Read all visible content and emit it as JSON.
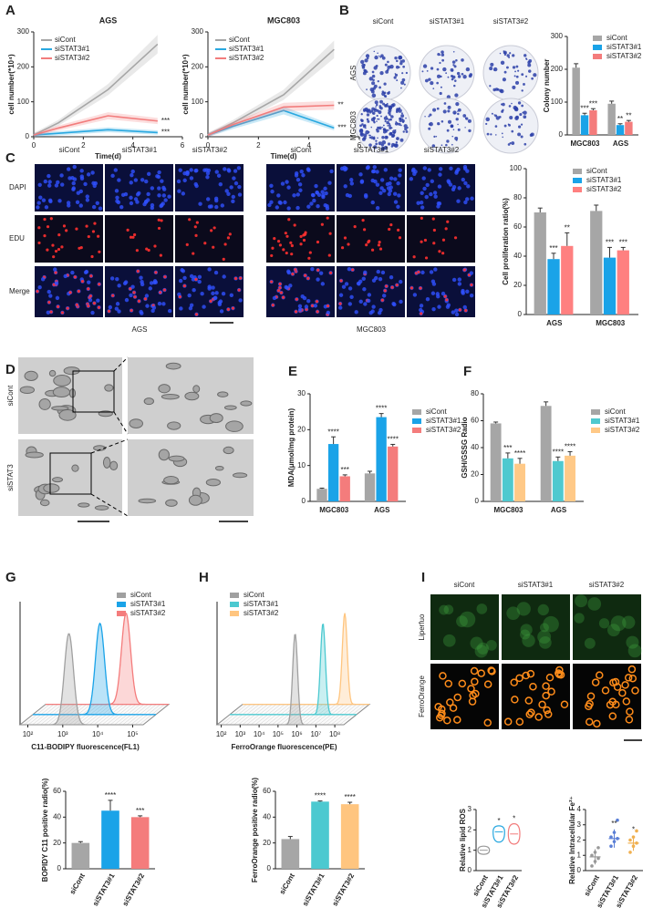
{
  "figure": {
    "panel_labels": [
      "A",
      "B",
      "C",
      "D",
      "E",
      "F",
      "G",
      "H",
      "I"
    ],
    "colony_images": {
      "columns": [
        "siCont",
        "siSTAT3#1",
        "siSTAT3#2"
      ],
      "rows": [
        "AGS",
        "MGC803"
      ]
    },
    "edu_images": {
      "columns": [
        "siCont",
        "siSTAT3#1",
        "siSTAT3#2"
      ],
      "rows": [
        "DAPI",
        "EDU",
        "Merge"
      ],
      "cell_lines": [
        "AGS",
        "MGC803"
      ]
    },
    "em_images": {
      "rows": [
        "siCont",
        "siSTAT3"
      ]
    },
    "ros_images": {
      "columns": [
        "siCont",
        "siSTAT3#1",
        "siSTAT3#2"
      ],
      "rows": [
        "Liperfuo",
        "FerroOrange"
      ]
    }
  },
  "chart_data": [
    {
      "type": "line",
      "title": "AGS",
      "xlabel": "Time(d)",
      "ylabel": "cell number(*10⁴)",
      "x": [
        0,
        1,
        3,
        5
      ],
      "xlim": [
        0,
        6
      ],
      "xticks": [
        0,
        2,
        4,
        6
      ],
      "ylim": [
        0,
        300
      ],
      "yticks": [
        0,
        100,
        200,
        300
      ],
      "series": [
        {
          "name": "siCont",
          "color": "#a6a6a6",
          "values": [
            5,
            40,
            135,
            265
          ]
        },
        {
          "name": "siSTAT3#1",
          "color": "#29a8e0",
          "values": [
            5,
            10,
            20,
            12
          ],
          "annotation": "***"
        },
        {
          "name": "siSTAT3#2",
          "color": "#f27c7c",
          "values": [
            5,
            25,
            60,
            45
          ],
          "annotation": "***"
        }
      ]
    },
    {
      "type": "line",
      "title": "MGC803",
      "xlabel": "Time(d)",
      "ylabel": "cell number(*10⁴)",
      "x": [
        0,
        1,
        3,
        5
      ],
      "xlim": [
        0,
        6
      ],
      "xticks": [
        0,
        2,
        4,
        6
      ],
      "ylim": [
        0,
        300
      ],
      "yticks": [
        0,
        100,
        200,
        300
      ],
      "series": [
        {
          "name": "siCont",
          "color": "#a6a6a6",
          "values": [
            5,
            40,
            120,
            250
          ]
        },
        {
          "name": "siSTAT3#1",
          "color": "#29a8e0",
          "values": [
            5,
            30,
            75,
            25
          ],
          "annotation": "***"
        },
        {
          "name": "siSTAT3#2",
          "color": "#f27c7c",
          "values": [
            5,
            35,
            85,
            90
          ],
          "annotation": "**"
        }
      ]
    },
    {
      "type": "bar",
      "ylabel": "Colony number",
      "categories": [
        "MGC803",
        "AGS"
      ],
      "ylim": [
        0,
        300
      ],
      "yticks": [
        0,
        100,
        200,
        300
      ],
      "series": [
        {
          "name": "siCont",
          "color": "#a6a6a6",
          "values": [
            205,
            95
          ],
          "errors": [
            12,
            8
          ]
        },
        {
          "name": "siSTAT3#1",
          "color": "#1aa3e8",
          "values": [
            60,
            30
          ],
          "errors": [
            6,
            4
          ],
          "significance": [
            "***",
            "**"
          ]
        },
        {
          "name": "siSTAT3#2",
          "color": "#f47c7c",
          "values": [
            75,
            40
          ],
          "errors": [
            5,
            4
          ],
          "significance": [
            "***",
            "**"
          ]
        }
      ]
    },
    {
      "type": "bar",
      "ylabel": "Cell proliferation ratio(%)",
      "categories": [
        "AGS",
        "MGC803"
      ],
      "ylim": [
        0,
        100
      ],
      "yticks": [
        0,
        20,
        40,
        60,
        80,
        100
      ],
      "series": [
        {
          "name": "siCont",
          "color": "#a6a6a6",
          "values": [
            70,
            71
          ],
          "errors": [
            3,
            4
          ]
        },
        {
          "name": "siSTAT3#1",
          "color": "#1aa3e8",
          "values": [
            38,
            39
          ],
          "errors": [
            4,
            7
          ],
          "significance": [
            "***",
            "***"
          ]
        },
        {
          "name": "siSTAT3#2",
          "color": "#ff8080",
          "values": [
            47,
            44
          ],
          "errors": [
            9,
            2
          ],
          "significance": [
            "**",
            "***"
          ]
        }
      ]
    },
    {
      "type": "bar",
      "ylabel": "MDA(μmol/mg protein)",
      "categories": [
        "MGC803",
        "AGS"
      ],
      "ylim": [
        0,
        30
      ],
      "yticks": [
        0,
        10,
        20,
        30
      ],
      "series": [
        {
          "name": "siCont",
          "color": "#a6a6a6",
          "values": [
            3.5,
            7.8
          ],
          "errors": [
            0.2,
            0.6
          ]
        },
        {
          "name": "siSTAT3#1",
          "color": "#1aa3e8",
          "values": [
            16,
            23.5
          ],
          "errors": [
            2,
            1
          ],
          "significance": [
            "****",
            "****"
          ]
        },
        {
          "name": "siSTAT3#2",
          "color": "#f47c7c",
          "values": [
            7,
            15.3
          ],
          "errors": [
            0.4,
            0.6
          ],
          "significance": [
            "***",
            "****"
          ]
        }
      ]
    },
    {
      "type": "bar",
      "ylabel": "GSH/GSSG Radio",
      "categories": [
        "MGC803",
        "AGS"
      ],
      "ylim": [
        0,
        80
      ],
      "yticks": [
        0,
        20,
        40,
        60,
        80
      ],
      "series": [
        {
          "name": "siCont",
          "color": "#a6a6a6",
          "values": [
            58,
            71
          ],
          "errors": [
            1,
            3
          ]
        },
        {
          "name": "siSTAT3#1",
          "color": "#4fc9cf",
          "values": [
            32,
            30
          ],
          "errors": [
            4,
            3
          ],
          "significance": [
            "***",
            "****"
          ]
        },
        {
          "name": "siSTAT3#2",
          "color": "#ffc987",
          "values": [
            28,
            34
          ],
          "errors": [
            4,
            3
          ],
          "significance": [
            "****",
            "****"
          ]
        }
      ]
    },
    {
      "type": "flow",
      "xlabel": "C11-BODIPY fluorescence(FL1)",
      "xscale": "log",
      "xlim": [
        60,
        200000
      ],
      "xticks": [
        {
          "value": 100,
          "label": "10²"
        },
        {
          "value": 1000,
          "label": "10³"
        },
        {
          "value": 10000,
          "label": "10⁴"
        },
        {
          "value": 100000,
          "label": "10⁵"
        }
      ],
      "series": [
        {
          "name": "siCont",
          "color": "#a0a0a0",
          "peak": 1500
        },
        {
          "name": "siSTAT3#1",
          "color": "#1aa3e8",
          "peak": 5000
        },
        {
          "name": "siSTAT3#2",
          "color": "#f47c7c",
          "peak": 12000
        }
      ]
    },
    {
      "type": "bar",
      "ylabel": "BOPIDY C11 positive radio(%)",
      "categories": [
        "siCont",
        "siSTAT3#1",
        "siSTAT3#2"
      ],
      "ylim": [
        0,
        60
      ],
      "yticks": [
        0,
        20,
        40,
        60
      ],
      "values": [
        20,
        45,
        40
      ],
      "errors": [
        1,
        8,
        1
      ],
      "colors": [
        "#a6a6a6",
        "#1aa3e8",
        "#f47c7c"
      ],
      "significance": [
        null,
        "****",
        "***"
      ]
    },
    {
      "type": "flow",
      "xlabel": "FerroOrange fluorescence(PE)",
      "xscale": "log",
      "xlim": [
        60,
        300000000
      ],
      "xticks": [
        {
          "value": 100,
          "label": "10²"
        },
        {
          "value": 1000,
          "label": "10³"
        },
        {
          "value": 10000,
          "label": "10⁴"
        },
        {
          "value": 100000,
          "label": "10⁵"
        },
        {
          "value": 1000000,
          "label": "10⁶"
        },
        {
          "value": 10000000,
          "label": "10⁷"
        },
        {
          "value": 100000000,
          "label": "10⁸"
        }
      ],
      "series": [
        {
          "name": "siCont",
          "color": "#a0a0a0",
          "peak": 800000
        },
        {
          "name": "siSTAT3#1",
          "color": "#4cc9d0",
          "peak": 5000000
        },
        {
          "name": "siSTAT3#2",
          "color": "#ffc57f",
          "peak": 15000000
        }
      ]
    },
    {
      "type": "bar",
      "ylabel": "FerroOrange positive radio(%)",
      "categories": [
        "siCont",
        "siSTAT3#1",
        "siSTAT3#2"
      ],
      "ylim": [
        0,
        60
      ],
      "yticks": [
        0,
        20,
        40,
        60
      ],
      "values": [
        23,
        52,
        50
      ],
      "errors": [
        2,
        0.5,
        1.5
      ],
      "colors": [
        "#a6a6a6",
        "#4cc9d0",
        "#ffc57f"
      ],
      "significance": [
        null,
        "****",
        "****"
      ]
    },
    {
      "type": "violin",
      "ylabel": "Relative lipid ROS",
      "categories": [
        "siCont",
        "siSTAT3#1",
        "siSTAT3#2"
      ],
      "ylim": [
        0,
        3
      ],
      "yticks": [
        0,
        1,
        2,
        3
      ],
      "values": [
        1.0,
        1.9,
        1.8
      ],
      "ranges": [
        [
          0.8,
          1.2
        ],
        [
          1.4,
          2.2
        ],
        [
          1.3,
          2.3
        ]
      ],
      "colors": [
        "#999999",
        "#29a8e0",
        "#f27c7c"
      ],
      "significance": [
        null,
        "*",
        "*"
      ]
    },
    {
      "type": "scatter",
      "ylabel": "Relative Intracellular Fe²⁺",
      "categories": [
        "siCont",
        "siSTAT3#1",
        "siSTAT3#2"
      ],
      "ylim": [
        0,
        4
      ],
      "yticks": [
        0,
        1,
        2,
        3,
        4
      ],
      "points": [
        [
          0.3,
          0.6,
          0.8,
          1.0,
          1.2,
          1.5
        ],
        [
          1.6,
          1.9,
          2.1,
          2.2,
          2.5,
          3.3
        ],
        [
          1.2,
          1.6,
          1.8,
          2.0,
          2.2,
          2.6
        ]
      ],
      "values": [
        0.9,
        2.1,
        1.8
      ],
      "errors": [
        0.5,
        0.6,
        0.5
      ],
      "colors": [
        "#999999",
        "#5b7fd6",
        "#f0b050"
      ],
      "significance": [
        null,
        "**",
        "*"
      ]
    }
  ]
}
